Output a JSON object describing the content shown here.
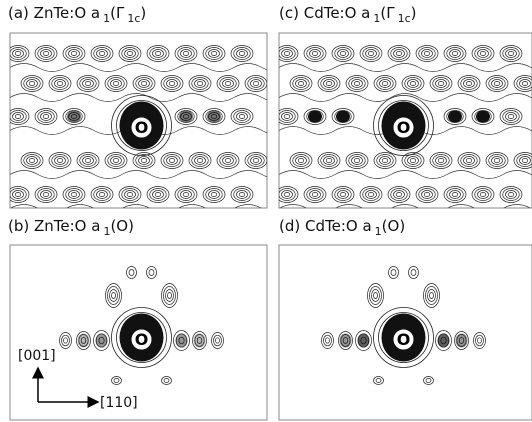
{
  "panels": [
    {
      "label": [
        "(a) ZnTe:O a",
        "1",
        "(Γ",
        "1c",
        ")"
      ],
      "atom": "O"
    },
    {
      "label": [
        "(b) ZnTe:O a",
        "1",
        "(O)"
      ],
      "atom": "O"
    },
    {
      "label": [
        "(c) CdTe:O a",
        "1",
        "(Γ",
        "1c",
        ")"
      ],
      "atom": "O"
    },
    {
      "label": [
        "(d) CdTe:O a",
        "1",
        "(O)"
      ],
      "atom": "O"
    }
  ],
  "axes": {
    "vertical": "[001]",
    "horizontal": "[110]"
  }
}
